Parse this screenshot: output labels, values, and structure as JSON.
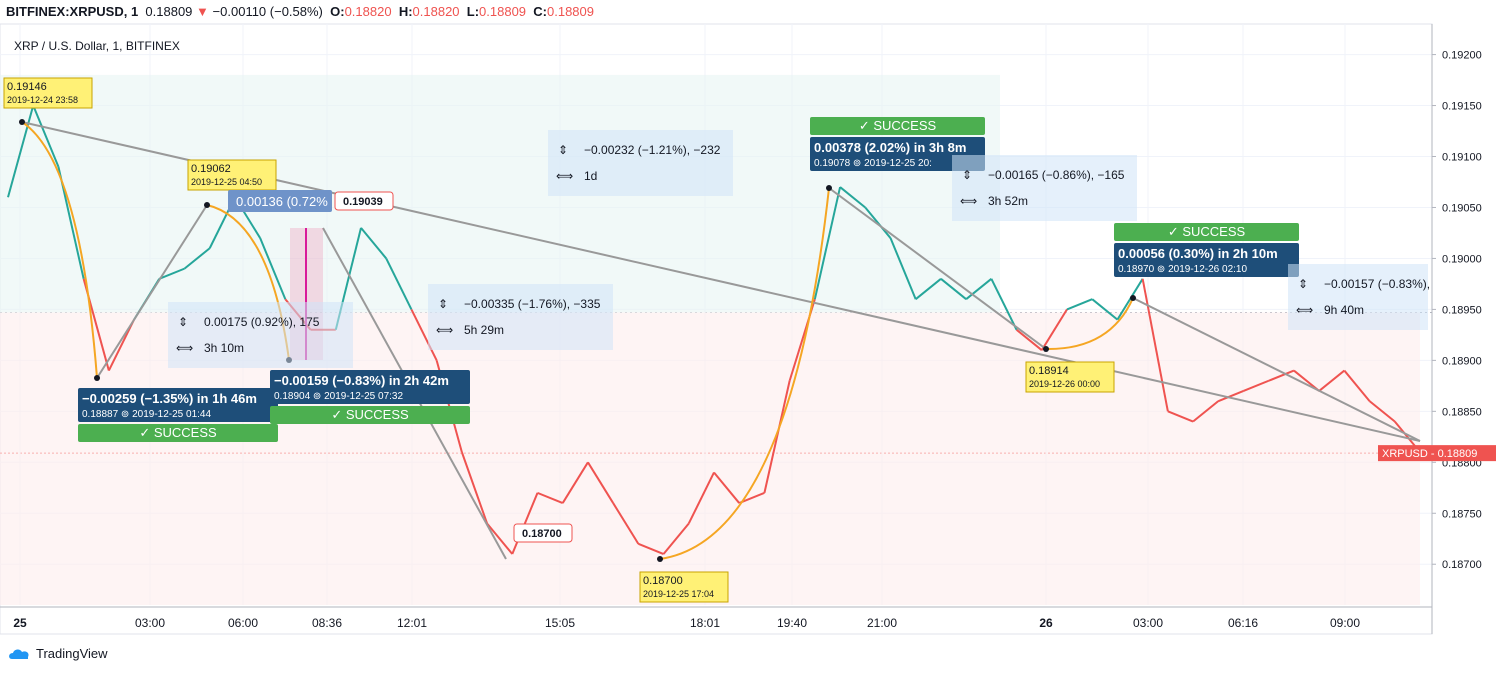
{
  "header": {
    "symbol": "BITFINEX:XRPUSD, 1",
    "last": "0.18809",
    "change": "−0.00110 (−0.58%)",
    "open_label": "O:",
    "open": "0.18820",
    "high_label": "H:",
    "high": "0.18820",
    "low_label": "L:",
    "low": "0.18809",
    "close_label": "C:",
    "close": "0.18809"
  },
  "legend_title": "XRP / U.S. Dollar, 1, BITFINEX",
  "footer": {
    "brand": "TradingView"
  },
  "colors": {
    "up": "#26a69a",
    "down": "#ef5350",
    "trend": "#999999",
    "fib": "#f5a623",
    "label_bg": "#1e4e79",
    "success": "#4caf50",
    "note_bg": "#fff176",
    "pct_bg": "#cfe3f7"
  },
  "chart_data": {
    "type": "line",
    "symbol": "XRPUSD",
    "ylim": [
      0.1866,
      0.1923
    ],
    "y_ticks": [
      "0.19200",
      "0.19150",
      "0.19100",
      "0.19050",
      "0.19000",
      "0.18950",
      "0.18900",
      "0.18850",
      "0.18800",
      "0.18750",
      "0.18700"
    ],
    "x_ticks": [
      "25",
      "03:00",
      "06:00",
      "08:36",
      "12:01",
      "15:05",
      "18:01",
      "19:40",
      "21:00",
      "26",
      "03:00",
      "06:16",
      "09:00"
    ],
    "last_price_label": "XRPUSD",
    "last_price": "0.18809",
    "series": [
      {
        "points": [
          [
            0,
            0.1906
          ],
          [
            1,
            0.1915
          ],
          [
            2,
            0.1909
          ],
          [
            3,
            0.1898
          ],
          [
            4,
            0.1889
          ],
          [
            5,
            0.1894
          ],
          [
            6,
            0.1898
          ],
          [
            7,
            0.1899
          ],
          [
            8,
            0.1901
          ],
          [
            9,
            0.1906
          ],
          [
            10,
            0.1902
          ],
          [
            11,
            0.1896
          ],
          [
            12,
            0.1893
          ],
          [
            13,
            0.1893
          ],
          [
            14,
            0.1903
          ],
          [
            15,
            0.19
          ],
          [
            16,
            0.1895
          ],
          [
            17,
            0.189
          ],
          [
            18,
            0.1881
          ],
          [
            19,
            0.1874
          ],
          [
            20,
            0.1871
          ],
          [
            21,
            0.1877
          ],
          [
            22,
            0.1876
          ],
          [
            23,
            0.188
          ],
          [
            24,
            0.1876
          ],
          [
            25,
            0.1872
          ],
          [
            26,
            0.1871
          ],
          [
            27,
            0.1874
          ],
          [
            28,
            0.1879
          ],
          [
            29,
            0.1876
          ],
          [
            30,
            0.1877
          ],
          [
            31,
            0.1888
          ],
          [
            32,
            0.1896
          ],
          [
            33,
            0.1907
          ],
          [
            34,
            0.1905
          ],
          [
            35,
            0.1902
          ],
          [
            36,
            0.1896
          ],
          [
            37,
            0.1898
          ],
          [
            38,
            0.1896
          ],
          [
            39,
            0.1898
          ],
          [
            40,
            0.1893
          ],
          [
            41,
            0.1891
          ],
          [
            42,
            0.1895
          ],
          [
            43,
            0.1896
          ],
          [
            44,
            0.1894
          ],
          [
            45,
            0.1898
          ],
          [
            46,
            0.1885
          ],
          [
            47,
            0.1884
          ],
          [
            48,
            0.1886
          ],
          [
            49,
            0.1887
          ],
          [
            50,
            0.1888
          ],
          [
            51,
            0.1889
          ],
          [
            52,
            0.1887
          ],
          [
            53,
            0.1889
          ],
          [
            54,
            0.1886
          ],
          [
            55,
            0.1884
          ],
          [
            56,
            0.1881
          ]
        ]
      }
    ],
    "annotations": [
      {
        "kind": "price_note",
        "price": "0.19146",
        "time": "2019-12-24 23:58"
      },
      {
        "kind": "price_note",
        "price": "0.19062",
        "time": "2019-12-25 04:50"
      },
      {
        "kind": "price_note",
        "price": "0.18914",
        "time": "2019-12-26 00:00"
      },
      {
        "kind": "price_note",
        "price": "0.18700",
        "time": "2019-12-25 17:04"
      },
      {
        "kind": "price_tag",
        "price": "0.19039"
      },
      {
        "kind": "price_tag",
        "price": "0.18700"
      },
      {
        "kind": "measure_label",
        "text": "0.00136 (0.72%"
      },
      {
        "kind": "result",
        "main": "−0.00259 (−1.35%) in 1h 46m",
        "sub": "0.18887 ⊚ 2019-12-25   01:44",
        "status": "SUCCESS"
      },
      {
        "kind": "result",
        "main": "−0.00159 (−0.83%) in 2h 42m",
        "sub": "0.18904 ⊚ 2019-12-25   07:32",
        "status": "SUCCESS"
      },
      {
        "kind": "result",
        "main": "0.00378 (2.02%) in 3h 8m",
        "sub": "0.19078 ⊚ 2019-12-25   20:",
        "status": "SUCCESS"
      },
      {
        "kind": "result",
        "main": "0.00056 (0.30%) in 2h 10m",
        "sub": "0.18970 ⊚ 2019-12-26   02:10",
        "status": "SUCCESS"
      },
      {
        "kind": "range",
        "line1": "0.00175 (0.92%), 175",
        "line2": "3h 10m"
      },
      {
        "kind": "range",
        "line1": "−0.00335 (−1.76%), −335",
        "line2": "5h 29m"
      },
      {
        "kind": "range",
        "line1": "−0.00232 (−1.21%), −232",
        "line2": "1d"
      },
      {
        "kind": "range",
        "line1": "−0.00165 (−0.86%), −165",
        "line2": "3h 52m"
      },
      {
        "kind": "range",
        "line1": "−0.00157 (−0.83%),",
        "line2": "9h 40m"
      }
    ]
  }
}
